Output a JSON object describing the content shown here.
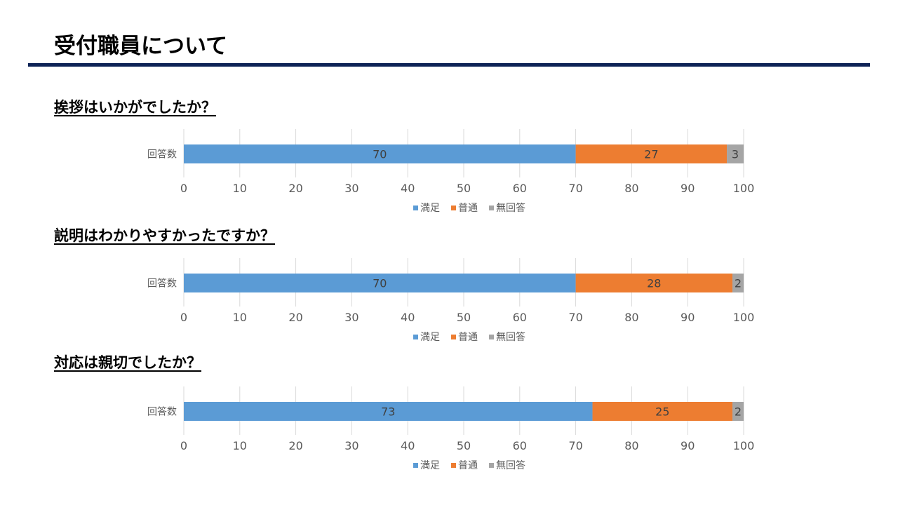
{
  "page": {
    "title": "受付職員について"
  },
  "colors": {
    "rule": "#0e2356"
  },
  "chart_data": [
    {
      "type": "bar",
      "orientation": "horizontal",
      "stacked": true,
      "title": "挨拶はいかがでしたか？",
      "categories": [
        "回答数"
      ],
      "series": [
        {
          "name": "満足",
          "values": [
            70
          ],
          "color": "#5b9bd5"
        },
        {
          "name": "普通",
          "values": [
            27
          ],
          "color": "#ed7d31"
        },
        {
          "name": "無回答",
          "values": [
            3
          ],
          "color": "#a5a5a5"
        }
      ],
      "xlim": [
        0,
        100
      ],
      "xticks": [
        0,
        10,
        20,
        30,
        40,
        50,
        60,
        70,
        80,
        90,
        100
      ],
      "grid": true,
      "legend": "bottom"
    },
    {
      "type": "bar",
      "orientation": "horizontal",
      "stacked": true,
      "title": "説明はわかりやすかったですか？",
      "categories": [
        "回答数"
      ],
      "series": [
        {
          "name": "満足",
          "values": [
            70
          ],
          "color": "#5b9bd5"
        },
        {
          "name": "普通",
          "values": [
            28
          ],
          "color": "#ed7d31"
        },
        {
          "name": "無回答",
          "values": [
            2
          ],
          "color": "#a5a5a5"
        }
      ],
      "xlim": [
        0,
        100
      ],
      "xticks": [
        0,
        10,
        20,
        30,
        40,
        50,
        60,
        70,
        80,
        90,
        100
      ],
      "grid": true,
      "legend": "bottom"
    },
    {
      "type": "bar",
      "orientation": "horizontal",
      "stacked": true,
      "title": "対応は親切でしたか？",
      "categories": [
        "回答数"
      ],
      "series": [
        {
          "name": "満足",
          "values": [
            73
          ],
          "color": "#5b9bd5"
        },
        {
          "name": "普通",
          "values": [
            25
          ],
          "color": "#ed7d31"
        },
        {
          "name": "無回答",
          "values": [
            2
          ],
          "color": "#a5a5a5"
        }
      ],
      "xlim": [
        0,
        100
      ],
      "xticks": [
        0,
        10,
        20,
        30,
        40,
        50,
        60,
        70,
        80,
        90,
        100
      ],
      "grid": true,
      "legend": "bottom"
    }
  ]
}
